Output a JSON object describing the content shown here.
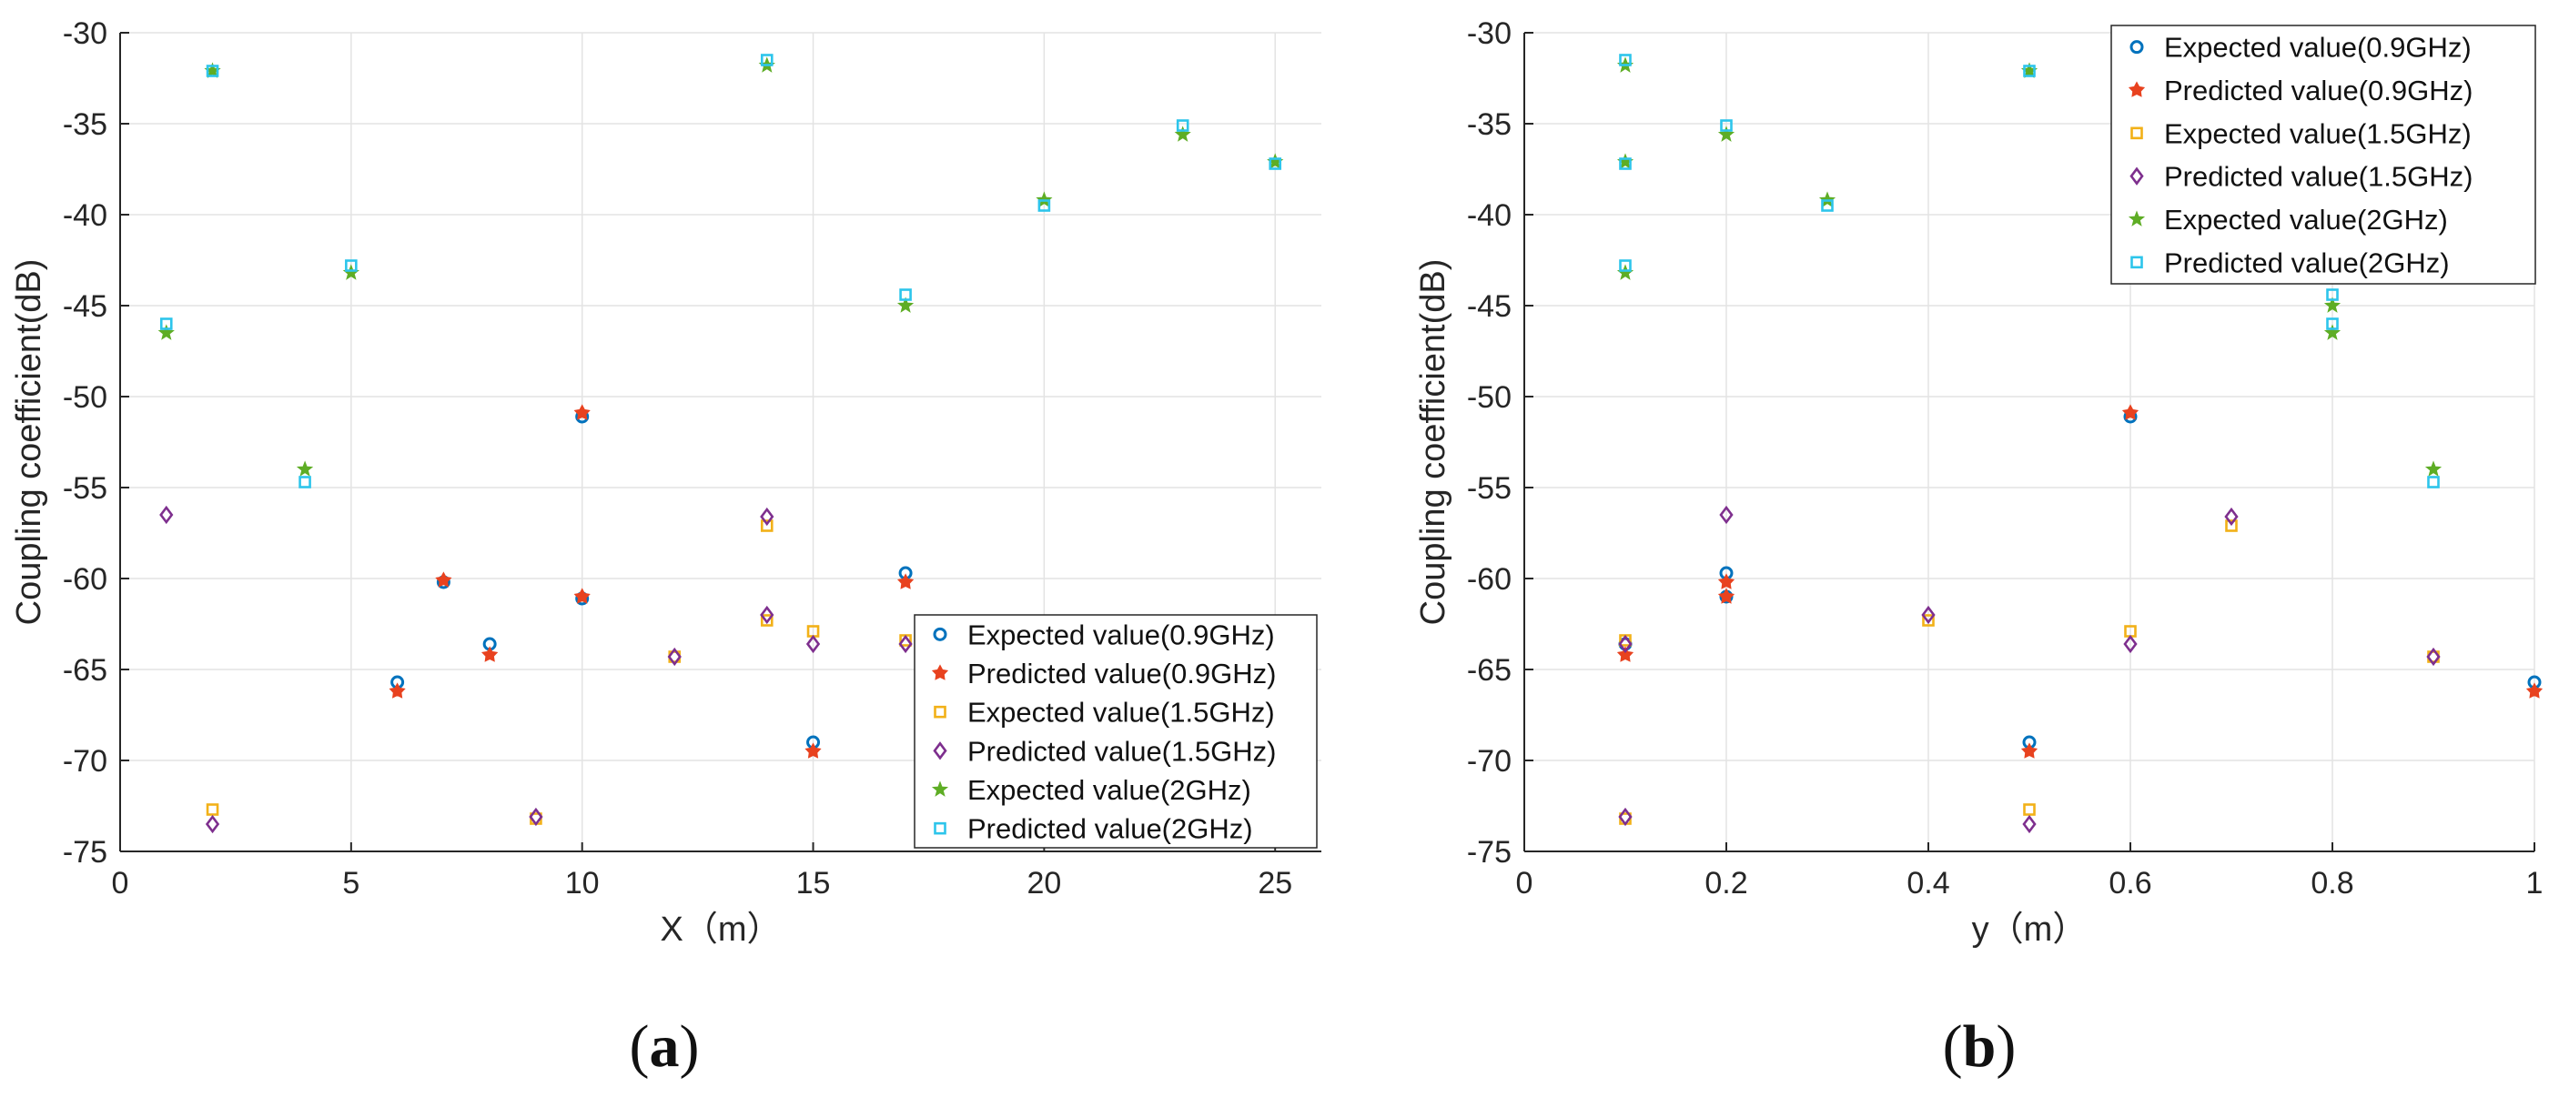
{
  "colors": {
    "exp09": "#0072BD",
    "pred09": "#E8421F",
    "exp15": "#F2B118",
    "pred15": "#7E2F8E",
    "exp2": "#5EAD25",
    "pred2": "#2DC5EB"
  },
  "chart_data": [
    {
      "type": "scatter",
      "panel_label": "a",
      "xlabel": "X（m）",
      "ylabel": "Coupling coefficient(dB)",
      "xlim": [
        0,
        26
      ],
      "ylim": [
        -75,
        -30
      ],
      "xticks": [
        0,
        5,
        10,
        15,
        20,
        25
      ],
      "yticks": [
        -30,
        -35,
        -40,
        -45,
        -50,
        -55,
        -60,
        -65,
        -70,
        -75
      ],
      "grid": true,
      "legend_position": "bottom-right",
      "series": [
        {
          "name": "Expected value(0.9GHz)",
          "marker": "circle",
          "color_key": "exp09",
          "points": [
            [
              6,
              -65.7
            ],
            [
              7,
              -60.2
            ],
            [
              8,
              -63.6
            ],
            [
              10,
              -51.1
            ],
            [
              10,
              -61.1
            ],
            [
              15,
              -69.0
            ],
            [
              17,
              -59.7
            ]
          ]
        },
        {
          "name": "Predicted value(0.9GHz)",
          "marker": "star",
          "color_key": "pred09",
          "points": [
            [
              6,
              -66.2
            ],
            [
              7,
              -60.1
            ],
            [
              8,
              -64.2
            ],
            [
              10,
              -50.9
            ],
            [
              10,
              -61.0
            ],
            [
              15,
              -69.5
            ],
            [
              17,
              -60.2
            ]
          ]
        },
        {
          "name": "Expected value(1.5GHz)",
          "marker": "square",
          "color_key": "exp15",
          "points": [
            [
              2,
              -72.7
            ],
            [
              9,
              -73.2
            ],
            [
              12,
              -64.3
            ],
            [
              14,
              -62.3
            ],
            [
              14,
              -57.1
            ],
            [
              15,
              -62.9
            ],
            [
              17,
              -63.4
            ]
          ]
        },
        {
          "name": "Predicted value(1.5GHz)",
          "marker": "diamond",
          "color_key": "pred15",
          "points": [
            [
              1,
              -56.5
            ],
            [
              2,
              -73.5
            ],
            [
              9,
              -73.1
            ],
            [
              12,
              -64.3
            ],
            [
              14,
              -56.6
            ],
            [
              14,
              -62.0
            ],
            [
              15,
              -63.6
            ],
            [
              17,
              -63.6
            ]
          ]
        },
        {
          "name": "Expected value(2GHz)",
          "marker": "pentagram",
          "color_key": "exp2",
          "points": [
            [
              1,
              -46.5
            ],
            [
              2,
              -32.1
            ],
            [
              4,
              -54.0
            ],
            [
              5,
              -43.2
            ],
            [
              14,
              -31.8
            ],
            [
              17,
              -45.0
            ],
            [
              20,
              -39.2
            ],
            [
              23,
              -35.6
            ],
            [
              25,
              -37.1
            ]
          ]
        },
        {
          "name": "Predicted value(2GHz)",
          "marker": "square",
          "color_key": "pred2",
          "points": [
            [
              1,
              -46.0
            ],
            [
              2,
              -32.1
            ],
            [
              4,
              -54.7
            ],
            [
              5,
              -42.8
            ],
            [
              14,
              -31.5
            ],
            [
              17,
              -44.4
            ],
            [
              20,
              -39.5
            ],
            [
              23,
              -35.1
            ],
            [
              25,
              -37.2
            ]
          ]
        }
      ]
    },
    {
      "type": "scatter",
      "panel_label": "b",
      "xlabel": "y（m）",
      "ylabel": "Coupling coefficient(dB)",
      "xlim": [
        0,
        1
      ],
      "ylim": [
        -75,
        -30
      ],
      "xticks": [
        0,
        0.2,
        0.4,
        0.6,
        0.8,
        1
      ],
      "xtick_labels": [
        "0",
        "0.2",
        "0.4",
        "0.6",
        "0.8",
        "1"
      ],
      "yticks": [
        -30,
        -35,
        -40,
        -45,
        -50,
        -55,
        -60,
        -65,
        -70,
        -75
      ],
      "grid": true,
      "legend_position": "top-right",
      "series": [
        {
          "name": "Expected value(0.9GHz)",
          "marker": "circle",
          "color_key": "exp09",
          "points": [
            [
              0.1,
              -63.6
            ],
            [
              0.2,
              -59.7
            ],
            [
              0.2,
              -61.0
            ],
            [
              0.5,
              -69.0
            ],
            [
              0.6,
              -51.1
            ],
            [
              1.0,
              -65.7
            ]
          ]
        },
        {
          "name": "Predicted value(0.9GHz)",
          "marker": "star",
          "color_key": "pred09",
          "points": [
            [
              0.1,
              -64.2
            ],
            [
              0.2,
              -60.2
            ],
            [
              0.2,
              -61.0
            ],
            [
              0.5,
              -69.5
            ],
            [
              0.6,
              -50.9
            ],
            [
              1.0,
              -66.2
            ]
          ]
        },
        {
          "name": "Expected value(1.5GHz)",
          "marker": "square",
          "color_key": "exp15",
          "points": [
            [
              0.1,
              -63.4
            ],
            [
              0.1,
              -73.2
            ],
            [
              0.4,
              -62.3
            ],
            [
              0.5,
              -72.7
            ],
            [
              0.6,
              -62.9
            ],
            [
              0.7,
              -57.1
            ],
            [
              0.9,
              -64.3
            ]
          ]
        },
        {
          "name": "Predicted value(1.5GHz)",
          "marker": "diamond",
          "color_key": "pred15",
          "points": [
            [
              0.1,
              -63.6
            ],
            [
              0.1,
              -73.1
            ],
            [
              0.2,
              -56.5
            ],
            [
              0.4,
              -62.0
            ],
            [
              0.5,
              -73.5
            ],
            [
              0.6,
              -63.6
            ],
            [
              0.7,
              -56.6
            ],
            [
              0.9,
              -64.3
            ]
          ]
        },
        {
          "name": "Expected value(2GHz)",
          "marker": "pentagram",
          "color_key": "exp2",
          "points": [
            [
              0.1,
              -31.8
            ],
            [
              0.1,
              -37.1
            ],
            [
              0.1,
              -43.2
            ],
            [
              0.2,
              -35.6
            ],
            [
              0.3,
              -39.2
            ],
            [
              0.5,
              -32.1
            ],
            [
              0.8,
              -45.0
            ],
            [
              0.8,
              -46.5
            ],
            [
              0.9,
              -54.0
            ]
          ]
        },
        {
          "name": "Predicted value(2GHz)",
          "marker": "square",
          "color_key": "pred2",
          "points": [
            [
              0.1,
              -31.5
            ],
            [
              0.1,
              -37.2
            ],
            [
              0.1,
              -42.8
            ],
            [
              0.2,
              -35.1
            ],
            [
              0.3,
              -39.5
            ],
            [
              0.5,
              -32.1
            ],
            [
              0.8,
              -44.4
            ],
            [
              0.8,
              -46.0
            ],
            [
              0.9,
              -54.7
            ]
          ]
        }
      ]
    }
  ]
}
